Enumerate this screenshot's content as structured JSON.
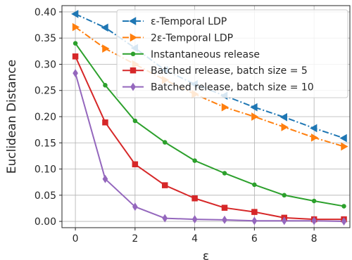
{
  "chart_data": {
    "type": "line",
    "xlabel": "ε",
    "ylabel": "Euclidean Distance",
    "xlim": [
      -0.45,
      9.2
    ],
    "ylim": [
      -0.012,
      0.412
    ],
    "xticks": [
      0,
      2,
      4,
      6,
      8
    ],
    "yticks": [
      0.0,
      0.05,
      0.1,
      0.15,
      0.2,
      0.25,
      0.3,
      0.35,
      0.4
    ],
    "ytick_labels": [
      "0.00",
      "0.05",
      "0.10",
      "0.15",
      "0.20",
      "0.25",
      "0.30",
      "0.35",
      "0.40"
    ],
    "grid": true,
    "legend_position": "top-right",
    "series": [
      {
        "name": "ε-Temporal LDP",
        "color": "#1f77b4",
        "dash": "dashdot",
        "marker": "triangle-left",
        "x": [
          0,
          1,
          2,
          3,
          4,
          5,
          6,
          7,
          8,
          9
        ],
        "y": [
          0.396,
          0.37,
          0.331,
          0.289,
          0.262,
          0.24,
          0.218,
          0.199,
          0.178,
          0.159
        ]
      },
      {
        "name": "2ε-Temporal LDP",
        "color": "#ff7f0e",
        "dash": "dashdot",
        "marker": "triangle-right",
        "x": [
          0,
          1,
          2,
          3,
          4,
          5,
          6,
          7,
          8,
          9
        ],
        "y": [
          0.371,
          0.33,
          0.3,
          0.27,
          0.243,
          0.218,
          0.2,
          0.18,
          0.16,
          0.143
        ]
      },
      {
        "name": "Instantaneous release",
        "color": "#2ca02c",
        "dash": "solid",
        "marker": "circle",
        "x": [
          0,
          1,
          2,
          3,
          4,
          5,
          6,
          7,
          8,
          9
        ],
        "y": [
          0.34,
          0.26,
          0.192,
          0.151,
          0.116,
          0.092,
          0.07,
          0.05,
          0.039,
          0.029
        ]
      },
      {
        "name": "Batched release, batch size = 5",
        "color": "#d62728",
        "dash": "solid",
        "marker": "square",
        "x": [
          0,
          1,
          2,
          3,
          4,
          5,
          6,
          7,
          8,
          9
        ],
        "y": [
          0.315,
          0.189,
          0.109,
          0.069,
          0.044,
          0.026,
          0.018,
          0.007,
          0.004,
          0.004
        ]
      },
      {
        "name": "Batched release, batch size = 10",
        "color": "#9467bd",
        "dash": "solid",
        "marker": "diamond",
        "x": [
          0,
          1,
          2,
          3,
          4,
          5,
          6,
          7,
          8,
          9
        ],
        "y": [
          0.283,
          0.081,
          0.028,
          0.006,
          0.004,
          0.003,
          0.001,
          0.001,
          0.001,
          0.0
        ]
      }
    ]
  }
}
